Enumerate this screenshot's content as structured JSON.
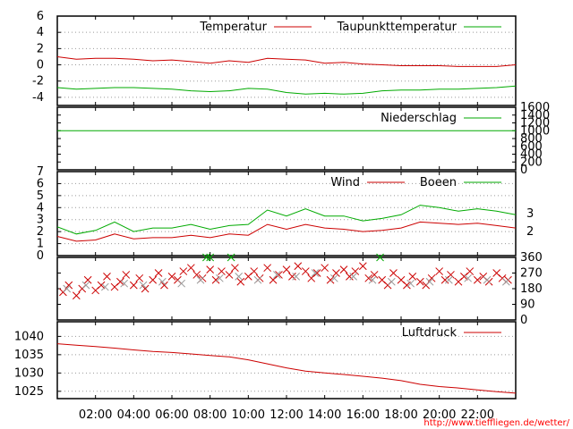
{
  "credit": "http://www.tiefflieg​en.de/wetter/",
  "x_axis": {
    "unit": "hours",
    "range": [
      0,
      24
    ],
    "ticks": [
      {
        "value": 2,
        "label": "02:00"
      },
      {
        "value": 4,
        "label": "04:00"
      },
      {
        "value": 6,
        "label": "06:00"
      },
      {
        "value": 8,
        "label": "08:00"
      },
      {
        "value": 10,
        "label": "10:00"
      },
      {
        "value": 12,
        "label": "12:00"
      },
      {
        "value": 14,
        "label": "14:00"
      },
      {
        "value": 16,
        "label": "16:00"
      },
      {
        "value": 18,
        "label": "18:00"
      },
      {
        "value": 20,
        "label": "20:00"
      },
      {
        "value": 22,
        "label": "22:00"
      }
    ]
  },
  "colors": {
    "red": "#cc0000",
    "green": "#00aa00",
    "grid": "#999999",
    "frame": "#000000"
  },
  "chart_data": [
    {
      "id": "temperature",
      "type": "line",
      "ylim": [
        -5,
        6
      ],
      "yticks": [
        6,
        4,
        2,
        0,
        -2,
        -4
      ],
      "grid": true,
      "legend_placement": "top-right",
      "series": [
        {
          "name": "Temperatur",
          "color": "#cc0000",
          "x": [
            0,
            1,
            2,
            3,
            4,
            5,
            6,
            7,
            8,
            9,
            10,
            11,
            12,
            13,
            14,
            15,
            16,
            17,
            18,
            19,
            20,
            21,
            22,
            23,
            24
          ],
          "y": [
            1.0,
            0.7,
            0.8,
            0.8,
            0.7,
            0.5,
            0.6,
            0.4,
            0.2,
            0.5,
            0.3,
            0.8,
            0.7,
            0.6,
            0.2,
            0.3,
            0.1,
            0.0,
            -0.1,
            -0.1,
            -0.1,
            -0.2,
            -0.2,
            -0.2,
            0.0
          ]
        },
        {
          "name": "Taupunkttemperatur",
          "color": "#00aa00",
          "x": [
            0,
            1,
            2,
            3,
            4,
            5,
            6,
            7,
            8,
            9,
            10,
            11,
            12,
            13,
            14,
            15,
            16,
            17,
            18,
            19,
            20,
            21,
            22,
            23,
            24
          ],
          "y": [
            -2.8,
            -3.0,
            -2.9,
            -2.8,
            -2.8,
            -2.9,
            -3.0,
            -3.2,
            -3.3,
            -3.2,
            -2.9,
            -3.0,
            -3.4,
            -3.6,
            -3.5,
            -3.6,
            -3.5,
            -3.2,
            -3.1,
            -3.1,
            -3.0,
            -3.0,
            -2.9,
            -2.8,
            -2.6
          ]
        }
      ]
    },
    {
      "id": "precipitation",
      "type": "line",
      "ylim": [
        0,
        1600
      ],
      "yticks": [
        0,
        200,
        400,
        600,
        800,
        1000,
        1200,
        1400,
        1600
      ],
      "right_axis": true,
      "legend_placement": "top-right",
      "series": [
        {
          "name": "Niederschlag",
          "color": "#00aa00",
          "x": [
            0,
            24
          ],
          "y": [
            1000,
            1000
          ]
        }
      ]
    },
    {
      "id": "wind",
      "type": "line",
      "ylim": [
        0,
        7
      ],
      "yticks": [
        0,
        1,
        2,
        3,
        4,
        5,
        6,
        7
      ],
      "right_axis_labels": [
        {
          "value": 2,
          "label": "2"
        },
        {
          "value": 3.5,
          "label": "3"
        }
      ],
      "grid": true,
      "legend_placement": "top-right",
      "series": [
        {
          "name": "Wind",
          "color": "#cc0000",
          "x": [
            0,
            1,
            2,
            3,
            4,
            5,
            6,
            7,
            8,
            9,
            10,
            11,
            12,
            13,
            14,
            15,
            16,
            17,
            18,
            19,
            20,
            21,
            22,
            23,
            24
          ],
          "y": [
            1.6,
            1.2,
            1.3,
            1.8,
            1.4,
            1.5,
            1.5,
            1.7,
            1.5,
            1.8,
            1.7,
            2.6,
            2.2,
            2.6,
            2.3,
            2.2,
            2.0,
            2.1,
            2.3,
            2.8,
            2.7,
            2.6,
            2.7,
            2.5,
            2.3
          ]
        },
        {
          "name": "Boeen",
          "color": "#00aa00",
          "x": [
            0,
            1,
            2,
            3,
            4,
            5,
            6,
            7,
            8,
            9,
            10,
            11,
            12,
            13,
            14,
            15,
            16,
            17,
            18,
            19,
            20,
            21,
            22,
            23,
            24
          ],
          "y": [
            2.4,
            1.8,
            2.1,
            2.8,
            2.0,
            2.3,
            2.3,
            2.6,
            2.2,
            2.5,
            2.6,
            3.8,
            3.3,
            3.9,
            3.3,
            3.3,
            2.9,
            3.1,
            3.4,
            4.2,
            4.0,
            3.7,
            3.9,
            3.7,
            3.4
          ]
        }
      ]
    },
    {
      "id": "wind_direction",
      "type": "scatter",
      "ylim": [
        0,
        360
      ],
      "yticks": [
        0,
        90,
        180,
        270,
        360
      ],
      "marker": "x",
      "series": [
        {
          "name": "",
          "color": "#cc0000",
          "x": [
            0.3,
            0.6,
            1.0,
            1.3,
            1.6,
            2.0,
            2.3,
            2.6,
            3.0,
            3.3,
            3.6,
            4.0,
            4.3,
            4.6,
            5.0,
            5.3,
            5.6,
            6.0,
            6.3,
            6.6,
            7.0,
            7.3,
            7.6,
            8.0,
            8.3,
            8.6,
            9.0,
            9.3,
            9.6,
            10.0,
            10.3,
            10.6,
            11.0,
            11.3,
            11.6,
            12.0,
            12.3,
            12.6,
            13.0,
            13.3,
            13.6,
            14.0,
            14.3,
            14.6,
            15.0,
            15.3,
            15.6,
            16.0,
            16.3,
            16.6,
            17.0,
            17.3,
            17.6,
            18.0,
            18.3,
            18.6,
            19.0,
            19.3,
            19.6,
            20.0,
            20.3,
            20.6,
            21.0,
            21.3,
            21.6,
            22.0,
            22.3,
            22.6,
            23.0,
            23.3,
            23.6
          ],
          "y": [
            160,
            200,
            140,
            180,
            230,
            170,
            200,
            250,
            190,
            220,
            260,
            200,
            240,
            180,
            230,
            270,
            200,
            250,
            230,
            280,
            300,
            260,
            240,
            290,
            230,
            280,
            260,
            300,
            220,
            250,
            280,
            240,
            300,
            230,
            260,
            290,
            250,
            310,
            280,
            240,
            270,
            300,
            230,
            270,
            290,
            250,
            280,
            310,
            240,
            260,
            230,
            200,
            270,
            230,
            200,
            250,
            220,
            200,
            240,
            280,
            230,
            260,
            220,
            250,
            280,
            230,
            250,
            220,
            270,
            240,
            230
          ]
        },
        {
          "name": "",
          "color": "#999999",
          "x": [
            0.5,
            1.5,
            2.5,
            3.5,
            4.5,
            5.5,
            6.5,
            7.5,
            8.5,
            9.5,
            10.5,
            11.5,
            12.5,
            13.5,
            14.5,
            15.5,
            16.5,
            17.5,
            18.5,
            19.5,
            20.5,
            21.5,
            22.5,
            23.5
          ],
          "y": [
            180,
            200,
            190,
            210,
            200,
            220,
            210,
            230,
            240,
            250,
            230,
            260,
            250,
            270,
            240,
            250,
            230,
            220,
            210,
            220,
            230,
            240,
            230,
            220
          ]
        },
        {
          "name": "",
          "color": "#00aa00",
          "x": [
            7.8,
            8.0,
            9.1,
            16.9
          ],
          "y": [
            360,
            360,
            360,
            360
          ]
        }
      ]
    },
    {
      "id": "pressure",
      "type": "line",
      "ylim": [
        1023,
        1044
      ],
      "yticks": [
        1025,
        1030,
        1035,
        1040
      ],
      "grid": true,
      "legend_placement": "top-right",
      "series": [
        {
          "name": "Luftdruck",
          "color": "#cc0000",
          "x": [
            0,
            1,
            2,
            3,
            4,
            5,
            6,
            7,
            8,
            9,
            10,
            11,
            12,
            13,
            14,
            15,
            16,
            17,
            18,
            19,
            20,
            21,
            22,
            23,
            24
          ],
          "y": [
            1038.0,
            1037.6,
            1037.2,
            1036.8,
            1036.3,
            1035.9,
            1035.6,
            1035.2,
            1034.8,
            1034.4,
            1033.6,
            1032.5,
            1031.4,
            1030.5,
            1030.0,
            1029.6,
            1029.1,
            1028.6,
            1027.9,
            1026.9,
            1026.3,
            1025.9,
            1025.4,
            1024.9,
            1024.5
          ]
        }
      ]
    }
  ]
}
